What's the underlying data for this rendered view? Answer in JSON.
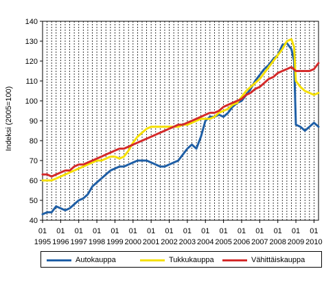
{
  "chart_data": {
    "type": "line",
    "title": "",
    "xlabel": "",
    "ylabel": "Indeksi (2005=100)",
    "ylim": [
      40,
      140
    ],
    "yticks": [
      40,
      50,
      60,
      70,
      80,
      90,
      100,
      110,
      120,
      130,
      140
    ],
    "xlim": [
      1995.0,
      2010.25
    ],
    "grid": "vertical dashed quarterly lines",
    "x_tick_months": "01",
    "x_tick_years": [
      "1995",
      "1996",
      "1997",
      "1998",
      "1999",
      "2000",
      "2001",
      "2002",
      "2003",
      "2004",
      "2005",
      "2006",
      "2007",
      "2008",
      "2009",
      "2010"
    ],
    "legend_position": "bottom",
    "series": [
      {
        "name": "Autokauppa",
        "color": "#1f5fa6",
        "points": [
          [
            1995.0,
            43
          ],
          [
            1995.25,
            44
          ],
          [
            1995.5,
            44
          ],
          [
            1995.75,
            47
          ],
          [
            1996.0,
            46
          ],
          [
            1996.25,
            45
          ],
          [
            1996.5,
            46
          ],
          [
            1996.75,
            48
          ],
          [
            1997.0,
            50
          ],
          [
            1997.25,
            51
          ],
          [
            1997.5,
            53
          ],
          [
            1997.75,
            57
          ],
          [
            1998.0,
            59
          ],
          [
            1998.25,
            61
          ],
          [
            1998.5,
            63
          ],
          [
            1998.75,
            65
          ],
          [
            1999.0,
            66
          ],
          [
            1999.25,
            67
          ],
          [
            1999.5,
            67
          ],
          [
            1999.75,
            68
          ],
          [
            2000.0,
            69
          ],
          [
            2000.25,
            70
          ],
          [
            2000.5,
            70
          ],
          [
            2000.75,
            70
          ],
          [
            2001.0,
            69
          ],
          [
            2001.25,
            68
          ],
          [
            2001.5,
            67
          ],
          [
            2001.75,
            67
          ],
          [
            2002.0,
            68
          ],
          [
            2002.25,
            69
          ],
          [
            2002.5,
            70
          ],
          [
            2002.75,
            73
          ],
          [
            2003.0,
            76
          ],
          [
            2003.25,
            78
          ],
          [
            2003.5,
            76
          ],
          [
            2003.75,
            82
          ],
          [
            2004.0,
            90
          ],
          [
            2004.25,
            92
          ],
          [
            2004.5,
            92
          ],
          [
            2004.75,
            93
          ],
          [
            2005.0,
            92
          ],
          [
            2005.25,
            94
          ],
          [
            2005.5,
            97
          ],
          [
            2005.75,
            99
          ],
          [
            2006.0,
            100
          ],
          [
            2006.25,
            103
          ],
          [
            2006.5,
            106
          ],
          [
            2006.75,
            110
          ],
          [
            2007.0,
            113
          ],
          [
            2007.25,
            116
          ],
          [
            2007.5,
            118
          ],
          [
            2007.75,
            121
          ],
          [
            2008.0,
            123
          ],
          [
            2008.25,
            128
          ],
          [
            2008.5,
            129
          ],
          [
            2008.75,
            126
          ],
          [
            2008.9,
            120
          ],
          [
            2009.0,
            88
          ],
          [
            2009.25,
            87
          ],
          [
            2009.5,
            85
          ],
          [
            2009.75,
            87
          ],
          [
            2010.0,
            89
          ],
          [
            2010.25,
            87
          ]
        ]
      },
      {
        "name": "Tukkukauppa",
        "color": "#f5e000",
        "points": [
          [
            1995.0,
            60
          ],
          [
            1995.25,
            60
          ],
          [
            1995.5,
            60
          ],
          [
            1995.75,
            61
          ],
          [
            1996.0,
            62
          ],
          [
            1996.25,
            63
          ],
          [
            1996.5,
            64
          ],
          [
            1996.75,
            65
          ],
          [
            1997.0,
            66
          ],
          [
            1997.25,
            67
          ],
          [
            1997.5,
            68
          ],
          [
            1997.75,
            69
          ],
          [
            1998.0,
            70
          ],
          [
            1998.25,
            70
          ],
          [
            1998.5,
            71
          ],
          [
            1998.75,
            72
          ],
          [
            1999.0,
            72
          ],
          [
            1999.25,
            71
          ],
          [
            1999.5,
            72
          ],
          [
            1999.75,
            75
          ],
          [
            2000.0,
            79
          ],
          [
            2000.25,
            82
          ],
          [
            2000.5,
            84
          ],
          [
            2000.75,
            86
          ],
          [
            2001.0,
            87
          ],
          [
            2001.25,
            87
          ],
          [
            2001.5,
            87
          ],
          [
            2001.75,
            87
          ],
          [
            2002.0,
            87
          ],
          [
            2002.25,
            87
          ],
          [
            2002.5,
            87
          ],
          [
            2002.75,
            88
          ],
          [
            2003.0,
            88
          ],
          [
            2003.25,
            89
          ],
          [
            2003.5,
            90
          ],
          [
            2003.75,
            91
          ],
          [
            2004.0,
            91
          ],
          [
            2004.25,
            91
          ],
          [
            2004.5,
            92
          ],
          [
            2004.75,
            94
          ],
          [
            2005.0,
            95
          ],
          [
            2005.25,
            96
          ],
          [
            2005.5,
            98
          ],
          [
            2005.75,
            99
          ],
          [
            2006.0,
            102
          ],
          [
            2006.25,
            105
          ],
          [
            2006.5,
            107
          ],
          [
            2006.75,
            109
          ],
          [
            2007.0,
            111
          ],
          [
            2007.25,
            114
          ],
          [
            2007.5,
            117
          ],
          [
            2007.75,
            120
          ],
          [
            2008.0,
            123
          ],
          [
            2008.25,
            126
          ],
          [
            2008.5,
            130
          ],
          [
            2008.75,
            131
          ],
          [
            2008.9,
            127
          ],
          [
            2009.0,
            110
          ],
          [
            2009.25,
            107
          ],
          [
            2009.5,
            105
          ],
          [
            2009.75,
            104
          ],
          [
            2010.0,
            103
          ],
          [
            2010.25,
            104
          ]
        ]
      },
      {
        "name": "Vähittäiskauppa",
        "color": "#d42a2a",
        "points": [
          [
            1995.0,
            63
          ],
          [
            1995.25,
            63
          ],
          [
            1995.5,
            62
          ],
          [
            1995.75,
            63
          ],
          [
            1996.0,
            64
          ],
          [
            1996.25,
            65
          ],
          [
            1996.5,
            65
          ],
          [
            1996.75,
            67
          ],
          [
            1997.0,
            68
          ],
          [
            1997.25,
            68
          ],
          [
            1997.5,
            69
          ],
          [
            1997.75,
            70
          ],
          [
            1998.0,
            71
          ],
          [
            1998.25,
            72
          ],
          [
            1998.5,
            73
          ],
          [
            1998.75,
            74
          ],
          [
            1999.0,
            75
          ],
          [
            1999.25,
            76
          ],
          [
            1999.5,
            76
          ],
          [
            1999.75,
            77
          ],
          [
            2000.0,
            78
          ],
          [
            2000.25,
            79
          ],
          [
            2000.5,
            80
          ],
          [
            2000.75,
            81
          ],
          [
            2001.0,
            82
          ],
          [
            2001.25,
            83
          ],
          [
            2001.5,
            84
          ],
          [
            2001.75,
            85
          ],
          [
            2002.0,
            86
          ],
          [
            2002.25,
            87
          ],
          [
            2002.5,
            88
          ],
          [
            2002.75,
            88
          ],
          [
            2003.0,
            89
          ],
          [
            2003.25,
            90
          ],
          [
            2003.5,
            91
          ],
          [
            2003.75,
            92
          ],
          [
            2004.0,
            93
          ],
          [
            2004.25,
            94
          ],
          [
            2004.5,
            94
          ],
          [
            2004.75,
            95
          ],
          [
            2005.0,
            97
          ],
          [
            2005.25,
            98
          ],
          [
            2005.5,
            99
          ],
          [
            2005.75,
            100
          ],
          [
            2006.0,
            101
          ],
          [
            2006.25,
            103
          ],
          [
            2006.5,
            104
          ],
          [
            2006.75,
            106
          ],
          [
            2007.0,
            107
          ],
          [
            2007.25,
            109
          ],
          [
            2007.5,
            111
          ],
          [
            2007.75,
            112
          ],
          [
            2008.0,
            114
          ],
          [
            2008.25,
            115
          ],
          [
            2008.5,
            116
          ],
          [
            2008.75,
            117
          ],
          [
            2009.0,
            115
          ],
          [
            2009.25,
            115
          ],
          [
            2009.5,
            115
          ],
          [
            2009.75,
            115
          ],
          [
            2010.0,
            116
          ],
          [
            2010.25,
            119
          ]
        ]
      }
    ]
  }
}
